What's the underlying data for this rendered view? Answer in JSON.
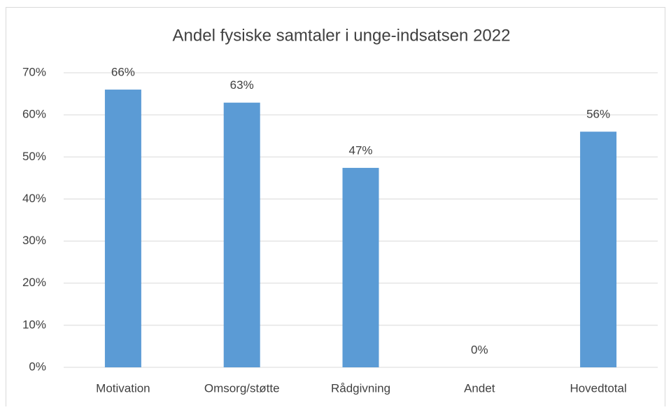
{
  "chart_data": {
    "type": "bar",
    "title": "Andel fysiske samtaler i unge-indsatsen 2022",
    "categories": [
      "Motivation",
      "Omsorg/støtte",
      "Rådgivning",
      "Andet",
      "Hovedtotal"
    ],
    "values": [
      66.0,
      62.9,
      47.4,
      0,
      56.0
    ],
    "value_labels": [
      "66%",
      "63%",
      "47%",
      "0%",
      "56%"
    ],
    "color": "#5b9bd5",
    "ylim": [
      0,
      70
    ],
    "yticks": [
      {
        "value": 0,
        "label": "0%"
      },
      {
        "value": 10,
        "label": "10%"
      },
      {
        "value": 20,
        "label": "20%"
      },
      {
        "value": 30,
        "label": "30%"
      },
      {
        "value": 40,
        "label": "40%"
      },
      {
        "value": 50,
        "label": "50%"
      },
      {
        "value": 60,
        "label": "60%"
      },
      {
        "value": 70,
        "label": "70%"
      }
    ],
    "grid": true
  }
}
